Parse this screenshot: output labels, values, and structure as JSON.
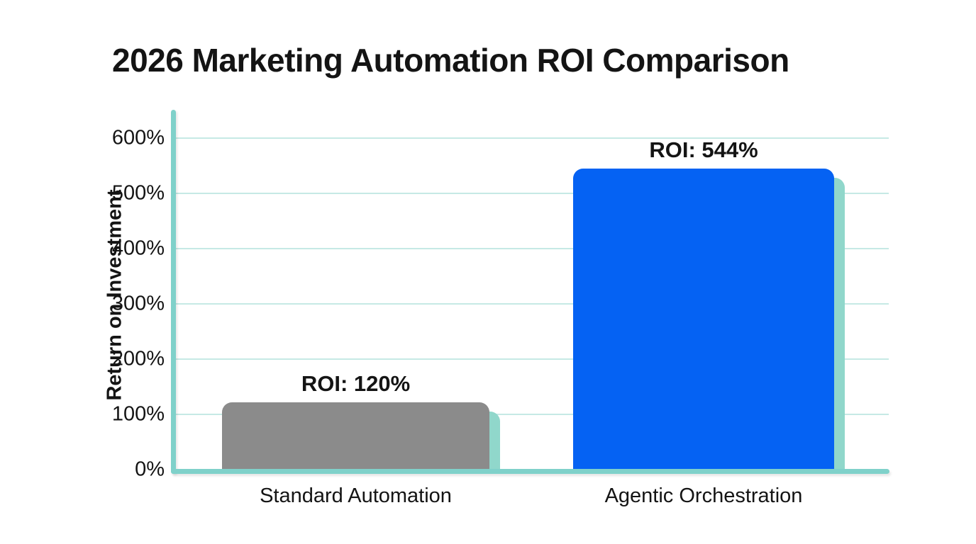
{
  "title": "2026 Marketing Automation ROI Comparison",
  "chart_data": {
    "type": "bar",
    "title": "2026 Marketing Automation ROI Comparison",
    "xlabel": "",
    "ylabel": "Return on Investment",
    "categories": [
      "Standard Automation",
      "Agentic Orchestration"
    ],
    "values": [
      120,
      544
    ],
    "value_labels": [
      "ROI: 120%",
      "ROI: 544%"
    ],
    "ylim": [
      0,
      650
    ],
    "yticks": [
      0,
      100,
      200,
      300,
      400,
      500,
      600
    ],
    "ytick_labels": [
      "0%",
      "100%",
      "200%",
      "300%",
      "400%",
      "500%",
      "600%"
    ],
    "grid": true,
    "legend": false,
    "colors": {
      "bar_standard": "#8b8b8b",
      "bar_agentic": "#0562f3",
      "axis": "#7fd1ca",
      "gridline": "#c6e9e5",
      "bar_shadow": "#90d7cb",
      "text": "#141414",
      "background": "#ffffff"
    }
  }
}
